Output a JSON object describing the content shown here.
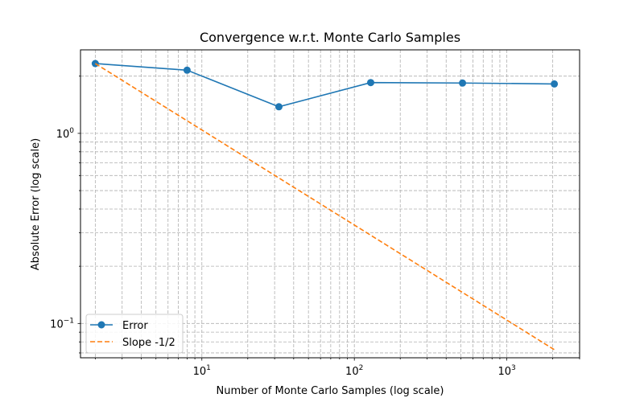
{
  "chart_data": {
    "type": "line",
    "title": "Convergence w.r.t. Monte Carlo Samples",
    "xlabel": "Number of Monte Carlo Samples (log scale)",
    "ylabel": "Absolute Error (log scale)",
    "xscale": "log",
    "yscale": "log",
    "xlim": [
      1.6,
      3000
    ],
    "ylim": [
      0.066,
      2.75
    ],
    "grid": true,
    "grid_which": "both",
    "legend_position": "lower-left",
    "x_ticks": [
      {
        "value": 10,
        "base": "10",
        "exp": "1"
      },
      {
        "value": 100,
        "base": "10",
        "exp": "2"
      },
      {
        "value": 1000,
        "base": "10",
        "exp": "3"
      }
    ],
    "y_ticks": [
      {
        "value": 0.1,
        "base": "10",
        "exp": "−1"
      },
      {
        "value": 1,
        "base": "10",
        "exp": "0"
      }
    ],
    "series": [
      {
        "name": "Error",
        "color": "#1f77b4",
        "style": "solid",
        "marker": "circle",
        "x": [
          2,
          8,
          32,
          128,
          512,
          2048
        ],
        "y": [
          2.33,
          2.15,
          1.38,
          1.85,
          1.84,
          1.82
        ]
      },
      {
        "name": "Slope -1/2",
        "color": "#ff7f0e",
        "style": "dashed",
        "marker": "none",
        "x": [
          2,
          2048
        ],
        "y": [
          2.33,
          0.0728
        ]
      }
    ]
  }
}
